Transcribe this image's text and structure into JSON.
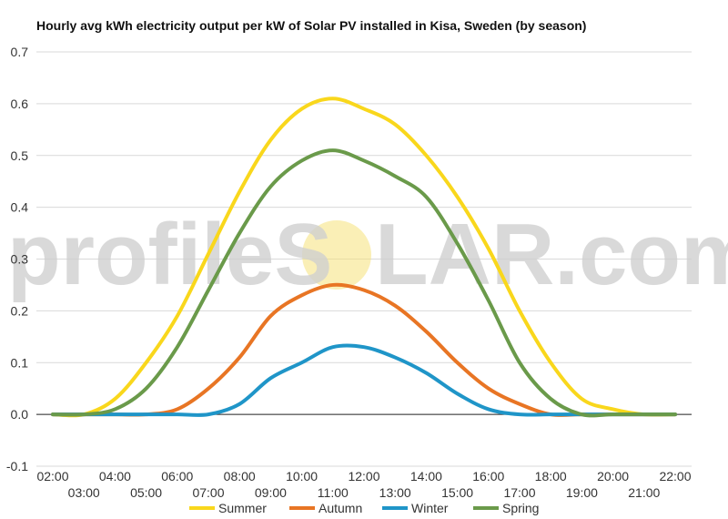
{
  "chart_data": {
    "type": "line",
    "title": "Hourly avg kWh electricity output per kW of Solar PV installed in Kisa, Sweden (by season)",
    "xlabel": "",
    "ylabel": "",
    "ylim": [
      -0.1,
      0.7
    ],
    "yticks": [
      "-0.1",
      "0.0",
      "0.1",
      "0.2",
      "0.3",
      "0.4",
      "0.5",
      "0.6",
      "0.7"
    ],
    "categories": [
      "02:00",
      "03:00",
      "04:00",
      "05:00",
      "06:00",
      "07:00",
      "08:00",
      "09:00",
      "10:00",
      "11:00",
      "12:00",
      "13:00",
      "14:00",
      "15:00",
      "16:00",
      "17:00",
      "18:00",
      "19:00",
      "20:00",
      "21:00",
      "22:00"
    ],
    "grid": "horizontal",
    "legend_position": "bottom",
    "series": [
      {
        "name": "Summer",
        "color": "#f9d71c",
        "values": [
          0.0,
          0.0,
          0.03,
          0.1,
          0.19,
          0.31,
          0.43,
          0.53,
          0.59,
          0.61,
          0.59,
          0.56,
          0.5,
          0.42,
          0.32,
          0.2,
          0.1,
          0.03,
          0.01,
          0.0,
          0.0
        ]
      },
      {
        "name": "Autumn",
        "color": "#e87524",
        "values": [
          0.0,
          0.0,
          0.0,
          0.0,
          0.01,
          0.05,
          0.11,
          0.19,
          0.23,
          0.25,
          0.24,
          0.21,
          0.16,
          0.1,
          0.05,
          0.02,
          0.0,
          0.0,
          0.0,
          0.0,
          0.0
        ]
      },
      {
        "name": "Winter",
        "color": "#1f95c8",
        "values": [
          0.0,
          0.0,
          0.0,
          0.0,
          0.0,
          0.0,
          0.02,
          0.07,
          0.1,
          0.13,
          0.13,
          0.11,
          0.08,
          0.04,
          0.01,
          0.0,
          0.0,
          0.0,
          0.0,
          0.0,
          0.0
        ]
      },
      {
        "name": "Spring",
        "color": "#6a9a4a",
        "values": [
          0.0,
          0.0,
          0.01,
          0.05,
          0.13,
          0.24,
          0.35,
          0.44,
          0.49,
          0.51,
          0.49,
          0.46,
          0.42,
          0.33,
          0.22,
          0.1,
          0.03,
          0.0,
          0.0,
          0.0,
          0.0
        ]
      }
    ]
  },
  "watermark": {
    "text_left": "profileS",
    "text_right": "LAR.com",
    "sun_color": "#f5e27a"
  }
}
